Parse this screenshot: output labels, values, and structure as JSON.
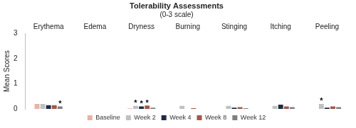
{
  "chart_data": {
    "type": "bar",
    "title": "Tolerability Assessments",
    "subtitle": "(0-3 scale)",
    "y_label": "Mean Scores",
    "categories": [
      "Erythema",
      "Edema",
      "Dryness",
      "Burning",
      "Stinging",
      "Itching",
      "Peeling"
    ],
    "series": [
      {
        "name": "Baseline",
        "color": "#e6b3a6",
        "values": [
          0.2,
          0,
          0.02,
          0,
          0,
          0,
          0
        ]
      },
      {
        "name": "Week 2",
        "color": "#c0c0c0",
        "values": [
          0.2,
          0,
          0.12,
          0.12,
          0.12,
          0.12,
          0.2
        ]
      },
      {
        "name": "Week 4",
        "color": "#1f2a44",
        "values": [
          0.15,
          0,
          0.1,
          0,
          0.05,
          0.17,
          0.05
        ]
      },
      {
        "name": "Week 8",
        "color": "#a0584c",
        "values": [
          0.15,
          0,
          0.13,
          0.03,
          0.07,
          0.1,
          0.1
        ]
      },
      {
        "name": "Week 12",
        "color": "#7f7f7f",
        "values": [
          0.1,
          0,
          0.05,
          0,
          0.03,
          0.07,
          0.07
        ]
      }
    ],
    "annotations": [
      {
        "category": "Erythema",
        "series": "Week 12",
        "text": "*"
      },
      {
        "category": "Dryness",
        "series": "Week 2",
        "text": "*"
      },
      {
        "category": "Dryness",
        "series": "Week 4",
        "text": "*"
      },
      {
        "category": "Dryness",
        "series": "Week 8",
        "text": "*"
      },
      {
        "category": "Peeling",
        "series": "Week 2",
        "text": "*"
      }
    ],
    "ylim": [
      0,
      3
    ],
    "yticks": [
      0,
      1,
      2,
      3
    ],
    "grid": false,
    "legend": "bottom"
  }
}
